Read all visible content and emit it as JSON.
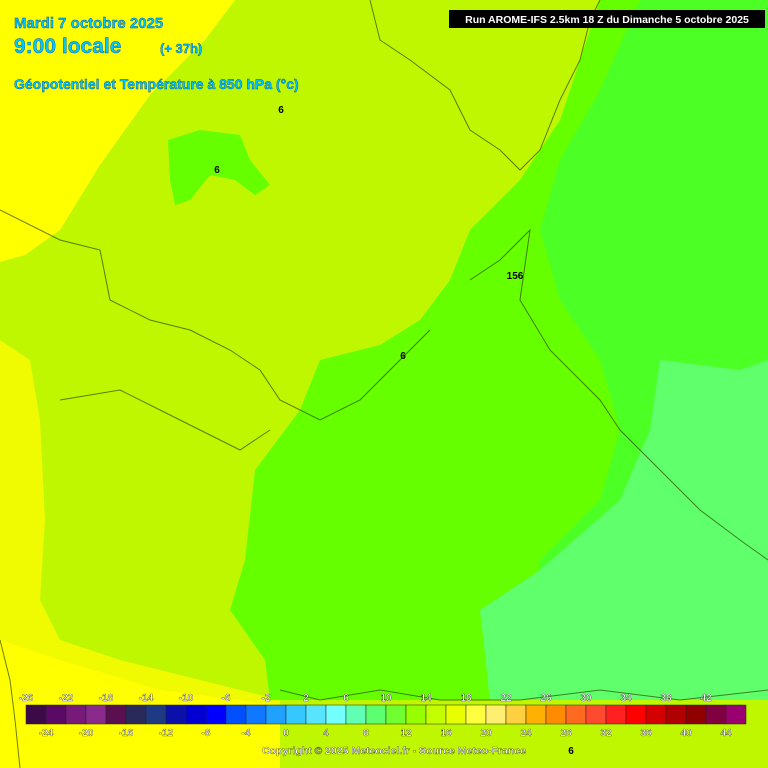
{
  "header": {
    "date": "Mardi 7 octobre 2025",
    "time": "9:00 locale",
    "lead": "(+ 37h)",
    "title": "Géopotentiel et Température à 850 hPa (°c)"
  },
  "run": "Run AROME-IFS 2.5km 18 Z du Dimanche 5 octobre 2025",
  "contour_labels": [
    "6",
    "6",
    "156",
    "6",
    "6"
  ],
  "scale": {
    "ticks": [
      -26,
      -24,
      -22,
      -20,
      -18,
      -16,
      -14,
      -12,
      -10,
      -8,
      -6,
      -4,
      -2,
      0,
      2,
      4,
      6,
      8,
      10,
      12,
      14,
      16,
      18,
      20,
      22,
      24,
      26,
      28,
      30,
      32,
      34,
      36,
      38,
      40,
      42,
      44
    ],
    "colors": [
      "#3c0a46",
      "#5a0a64",
      "#781a7a",
      "#8a2a8c",
      "#5a1050",
      "#2a2a5a",
      "#1e3a82",
      "#0a10a8",
      "#0000d2",
      "#0000ff",
      "#0050ff",
      "#1078ff",
      "#20a0ff",
      "#34c8ff",
      "#58e4ff",
      "#74ffff",
      "#60ffb4",
      "#5cff70",
      "#70ff30",
      "#98ff00",
      "#c4ff00",
      "#e8ff00",
      "#ffff40",
      "#ffee70",
      "#ffd040",
      "#ffb000",
      "#ff8c00",
      "#ff6a20",
      "#ff4a30",
      "#ff2020",
      "#ff0000",
      "#d40000",
      "#b00000",
      "#900000",
      "#800040",
      "#9a0070"
    ]
  },
  "copyright": "Copyright © 2025 Meteociel.fr - Source Meteo-France"
}
